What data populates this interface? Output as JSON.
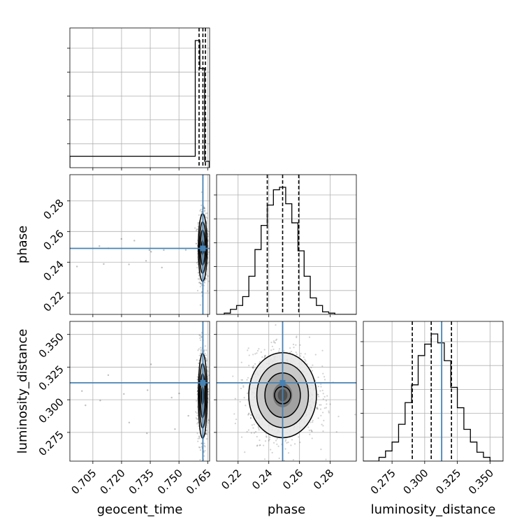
{
  "chart_data": {
    "type": "corner",
    "parameters": [
      "geocent_time",
      "phase",
      "luminosity_distance"
    ],
    "axis_labels": {
      "x": [
        "geocent_time",
        "phase",
        "luminosity_distance"
      ],
      "y": [
        "phase",
        "luminosity_distance"
      ]
    },
    "ranges": {
      "geocent_time": [
        0.693,
        0.766
      ],
      "phase": [
        0.206,
        0.297
      ],
      "luminosity_distance": [
        0.253,
        0.36
      ]
    },
    "ticks": {
      "geocent_time": {
        "values": [
          0.705,
          0.72,
          0.735,
          0.75,
          0.765
        ],
        "labels": [
          "0.705",
          "0.720",
          "0.735",
          "0.750",
          "0.765"
        ]
      },
      "phase": {
        "values": [
          0.22,
          0.24,
          0.26,
          0.28
        ],
        "labels": [
          "0.22",
          "0.24",
          "0.26",
          "0.28"
        ]
      },
      "luminosity_distance": {
        "values": [
          0.275,
          0.3,
          0.325,
          0.35
        ],
        "labels": [
          "0.275",
          "0.300",
          "0.325",
          "0.350"
        ]
      }
    },
    "truths": {
      "geocent_time": 0.7625,
      "phase": 0.249,
      "luminosity_distance": 0.313
    },
    "quantiles": {
      "geocent_time": [
        0.7605,
        0.7625,
        0.7638
      ],
      "phase": [
        0.239,
        0.249,
        0.2595
      ],
      "luminosity_distance": [
        0.2905,
        0.305,
        0.3205
      ]
    },
    "histograms": {
      "geocent_time": {
        "edges": [
          0.693,
          0.7585,
          0.7609,
          0.7634,
          0.7658,
          0.766
        ],
        "counts": [
          0.09,
          1.0,
          0.78,
          0.05,
          0.0
        ]
      },
      "phase": {
        "edges": [
          0.206,
          0.211,
          0.215,
          0.219,
          0.223,
          0.227,
          0.231,
          0.235,
          0.239,
          0.243,
          0.247,
          0.251,
          0.255,
          0.259,
          0.263,
          0.267,
          0.271,
          0.275,
          0.279,
          0.283,
          0.287,
          0.297
        ],
        "counts": [
          0.0,
          0.01,
          0.04,
          0.07,
          0.14,
          0.3,
          0.51,
          0.7,
          0.86,
          0.98,
          1.0,
          0.87,
          0.72,
          0.5,
          0.3,
          0.13,
          0.07,
          0.02,
          0.01,
          0.0,
          0.0
        ]
      },
      "luminosity_distance": {
        "edges": [
          0.253,
          0.265,
          0.27,
          0.275,
          0.28,
          0.285,
          0.29,
          0.295,
          0.3,
          0.305,
          0.31,
          0.315,
          0.32,
          0.325,
          0.33,
          0.335,
          0.34,
          0.345,
          0.35,
          0.36
        ],
        "counts": [
          0.0,
          0.03,
          0.08,
          0.15,
          0.29,
          0.46,
          0.6,
          0.83,
          0.92,
          1.0,
          0.93,
          0.79,
          0.58,
          0.42,
          0.25,
          0.15,
          0.07,
          0.03,
          0.0
        ]
      }
    },
    "posterior_peaks": {
      "phase_vs_geocent_time": {
        "x": 0.7624,
        "y": 0.2495,
        "sx": 0.0011,
        "sy": 0.0105,
        "outliers_x_min": 0.695
      },
      "luminosity_distance_vs_geocent_time": {
        "x": 0.7624,
        "y": 0.303,
        "sx": 0.0011,
        "sy": 0.0155,
        "outliers_x_min": 0.695
      },
      "luminosity_distance_vs_phase": {
        "x": 0.249,
        "y": 0.3035,
        "sx": 0.0105,
        "sy": 0.0155
      }
    },
    "grid": true,
    "truth_color": "#4682b4"
  }
}
